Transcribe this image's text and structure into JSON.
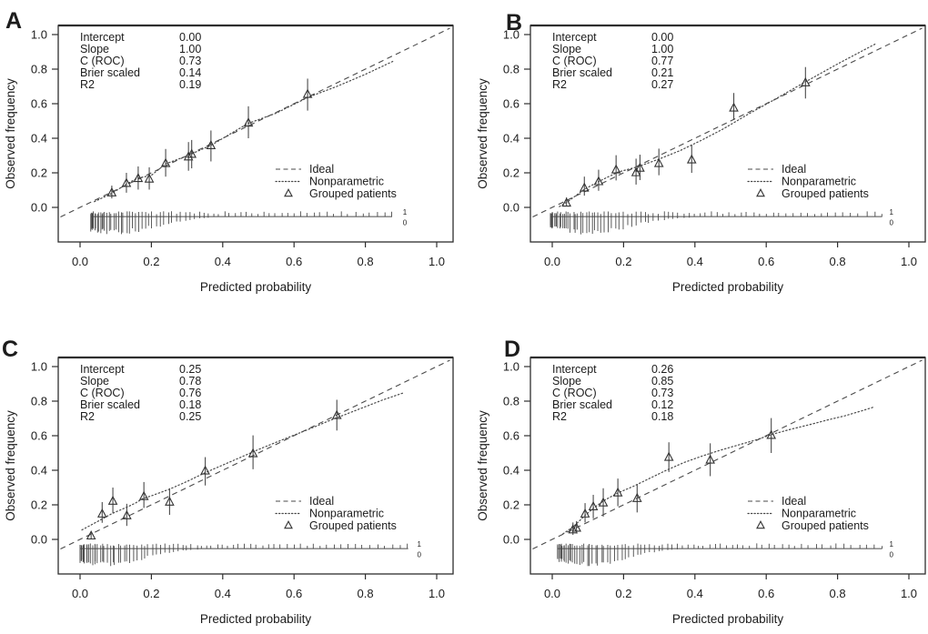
{
  "figure": {
    "background": "#ffffff",
    "line_color": "#4a4a4a",
    "box_color": "#2e2e2e",
    "text_color": "#1c1c1c",
    "x_label": "Predicted probability",
    "y_label": "Observed frequency",
    "x_ticks": [
      "0.0",
      "0.2",
      "0.4",
      "0.6",
      "0.8",
      "1.0"
    ],
    "y_ticks": [
      "1.0",
      "0.8",
      "0.6",
      "0.4",
      "0.2",
      "0.0"
    ],
    "legend": [
      {
        "symbol": "dashed-line",
        "label": "Ideal"
      },
      {
        "symbol": "dotted-line",
        "label": "Nonparametric"
      },
      {
        "symbol": "open-triangle",
        "label": "Grouped patients"
      }
    ],
    "rug_labels": {
      "one": "1",
      "zero": "0"
    }
  },
  "chart_data": [
    {
      "panel": "A",
      "type": "line",
      "title": "",
      "xlabel": "Predicted probability",
      "ylabel": "Observed frequency",
      "xlim": [
        -0.06,
        1.04
      ],
      "ylim": [
        -0.2,
        1.05
      ],
      "stats": [
        {
          "label": "Intercept",
          "value": "0.00"
        },
        {
          "label": "Slope",
          "value": "1.00"
        },
        {
          "label": "C (ROC)",
          "value": "0.73"
        },
        {
          "label": "Brier scaled",
          "value": "0.14"
        },
        {
          "label": "R2",
          "value": "0.19"
        }
      ],
      "ideal": {
        "x1": -0.055,
        "y1": -0.055,
        "x2": 1.037,
        "y2": 1.037
      },
      "nonparametric": [
        [
          0.04,
          0.033
        ],
        [
          0.09,
          0.082
        ],
        [
          0.13,
          0.135
        ],
        [
          0.16,
          0.168
        ],
        [
          0.2,
          0.186
        ],
        [
          0.24,
          0.252
        ],
        [
          0.3,
          0.298
        ],
        [
          0.37,
          0.362
        ],
        [
          0.47,
          0.485
        ],
        [
          0.55,
          0.545
        ],
        [
          0.64,
          0.638
        ],
        [
          0.72,
          0.7
        ],
        [
          0.8,
          0.77
        ],
        [
          0.88,
          0.848
        ]
      ],
      "grouped": [
        {
          "x": 0.089,
          "y": 0.085,
          "lo": 0.052,
          "hi": 0.126
        },
        {
          "x": 0.13,
          "y": 0.14,
          "lo": 0.085,
          "hi": 0.2
        },
        {
          "x": 0.163,
          "y": 0.168,
          "lo": 0.103,
          "hi": 0.237
        },
        {
          "x": 0.194,
          "y": 0.165,
          "lo": 0.103,
          "hi": 0.232
        },
        {
          "x": 0.24,
          "y": 0.255,
          "lo": 0.178,
          "hi": 0.338
        },
        {
          "x": 0.304,
          "y": 0.293,
          "lo": 0.212,
          "hi": 0.378
        },
        {
          "x": 0.313,
          "y": 0.308,
          "lo": 0.226,
          "hi": 0.39
        },
        {
          "x": 0.367,
          "y": 0.358,
          "lo": 0.266,
          "hi": 0.445
        },
        {
          "x": 0.472,
          "y": 0.489,
          "lo": 0.4,
          "hi": 0.585
        },
        {
          "x": 0.638,
          "y": 0.655,
          "lo": 0.56,
          "hi": 0.745
        }
      ],
      "rug": {
        "seed": 7,
        "n": 74,
        "x_min": 0.03,
        "x_max": 0.875,
        "mode": 0.1,
        "sigma": 0.115,
        "label_x": 0.905
      }
    },
    {
      "panel": "B",
      "type": "line",
      "title": "",
      "xlabel": "Predicted probability",
      "ylabel": "Observed frequency",
      "xlim": [
        -0.06,
        1.04
      ],
      "ylim": [
        -0.2,
        1.05
      ],
      "stats": [
        {
          "label": "Intercept",
          "value": "0.00"
        },
        {
          "label": "Slope",
          "value": "1.00"
        },
        {
          "label": "C (ROC)",
          "value": "0.77"
        },
        {
          "label": "Brier scaled",
          "value": "0.21"
        },
        {
          "label": "R2",
          "value": "0.27"
        }
      ],
      "ideal": {
        "x1": -0.055,
        "y1": -0.055,
        "x2": 1.037,
        "y2": 1.037
      },
      "nonparametric": [
        [
          0.02,
          0.005
        ],
        [
          0.045,
          0.035
        ],
        [
          0.09,
          0.105
        ],
        [
          0.135,
          0.155
        ],
        [
          0.185,
          0.205
        ],
        [
          0.24,
          0.235
        ],
        [
          0.3,
          0.28
        ],
        [
          0.36,
          0.33
        ],
        [
          0.42,
          0.39
        ],
        [
          0.48,
          0.455
        ],
        [
          0.55,
          0.54
        ],
        [
          0.62,
          0.62
        ],
        [
          0.7,
          0.715
        ],
        [
          0.8,
          0.83
        ],
        [
          0.905,
          0.945
        ]
      ],
      "grouped": [
        {
          "x": 0.04,
          "y": 0.026,
          "lo": 0.006,
          "hi": 0.058
        },
        {
          "x": 0.09,
          "y": 0.113,
          "lo": 0.068,
          "hi": 0.178
        },
        {
          "x": 0.13,
          "y": 0.15,
          "lo": 0.096,
          "hi": 0.218
        },
        {
          "x": 0.179,
          "y": 0.218,
          "lo": 0.156,
          "hi": 0.302
        },
        {
          "x": 0.235,
          "y": 0.202,
          "lo": 0.132,
          "hi": 0.282
        },
        {
          "x": 0.246,
          "y": 0.228,
          "lo": 0.158,
          "hi": 0.305
        },
        {
          "x": 0.299,
          "y": 0.255,
          "lo": 0.186,
          "hi": 0.34
        },
        {
          "x": 0.391,
          "y": 0.276,
          "lo": 0.2,
          "hi": 0.362
        },
        {
          "x": 0.509,
          "y": 0.576,
          "lo": 0.506,
          "hi": 0.662
        },
        {
          "x": 0.71,
          "y": 0.722,
          "lo": 0.63,
          "hi": 0.812
        }
      ],
      "rug": {
        "seed": 13,
        "n": 78,
        "x_min": -0.005,
        "x_max": 0.925,
        "mode": 0.1,
        "sigma": 0.12,
        "label_x": 0.945
      }
    },
    {
      "panel": "C",
      "type": "line",
      "title": "",
      "xlabel": "Predicted probability",
      "ylabel": "Observed frequency",
      "xlim": [
        -0.06,
        1.04
      ],
      "ylim": [
        -0.2,
        1.05
      ],
      "stats": [
        {
          "label": "Intercept",
          "value": "0.25"
        },
        {
          "label": "Slope",
          "value": "0.78"
        },
        {
          "label": "C (ROC)",
          "value": "0.76"
        },
        {
          "label": "Brier scaled",
          "value": "0.18"
        },
        {
          "label": "R2",
          "value": "0.25"
        }
      ],
      "ideal": {
        "x1": -0.055,
        "y1": -0.055,
        "x2": 1.037,
        "y2": 1.037
      },
      "nonparametric": [
        [
          0.005,
          0.055
        ],
        [
          0.05,
          0.105
        ],
        [
          0.09,
          0.15
        ],
        [
          0.13,
          0.185
        ],
        [
          0.155,
          0.21
        ],
        [
          0.175,
          0.235
        ],
        [
          0.2,
          0.252
        ],
        [
          0.25,
          0.29
        ],
        [
          0.3,
          0.335
        ],
        [
          0.35,
          0.385
        ],
        [
          0.4,
          0.43
        ],
        [
          0.45,
          0.475
        ],
        [
          0.5,
          0.52
        ],
        [
          0.55,
          0.562
        ],
        [
          0.6,
          0.603
        ],
        [
          0.65,
          0.645
        ],
        [
          0.7,
          0.688
        ],
        [
          0.75,
          0.728
        ],
        [
          0.8,
          0.768
        ],
        [
          0.85,
          0.808
        ],
        [
          0.91,
          0.85
        ]
      ],
      "grouped": [
        {
          "x": 0.031,
          "y": 0.021,
          "lo": 0.004,
          "hi": 0.046
        },
        {
          "x": 0.062,
          "y": 0.148,
          "lo": 0.096,
          "hi": 0.216
        },
        {
          "x": 0.092,
          "y": 0.222,
          "lo": 0.152,
          "hi": 0.3
        },
        {
          "x": 0.131,
          "y": 0.138,
          "lo": 0.078,
          "hi": 0.206
        },
        {
          "x": 0.179,
          "y": 0.249,
          "lo": 0.182,
          "hi": 0.332
        },
        {
          "x": 0.251,
          "y": 0.217,
          "lo": 0.142,
          "hi": 0.296
        },
        {
          "x": 0.351,
          "y": 0.397,
          "lo": 0.312,
          "hi": 0.476
        },
        {
          "x": 0.485,
          "y": 0.497,
          "lo": 0.406,
          "hi": 0.602
        },
        {
          "x": 0.72,
          "y": 0.718,
          "lo": 0.63,
          "hi": 0.808
        }
      ],
      "rug": {
        "seed": 21,
        "n": 78,
        "x_min": 0.0,
        "x_max": 0.92,
        "mode": 0.07,
        "sigma": 0.11,
        "label_x": 0.945
      }
    },
    {
      "panel": "D",
      "type": "line",
      "title": "",
      "xlabel": "Predicted probability",
      "ylabel": "Observed frequency",
      "xlim": [
        -0.06,
        1.04
      ],
      "ylim": [
        -0.2,
        1.05
      ],
      "stats": [
        {
          "label": "Intercept",
          "value": "0.26"
        },
        {
          "label": "Slope",
          "value": "0.85"
        },
        {
          "label": "C (ROC)",
          "value": "0.73"
        },
        {
          "label": "Brier scaled",
          "value": "0.12"
        },
        {
          "label": "R2",
          "value": "0.18"
        }
      ],
      "ideal": {
        "x1": -0.055,
        "y1": -0.055,
        "x2": 1.037,
        "y2": 1.037
      },
      "nonparametric": [
        [
          0.03,
          0.032
        ],
        [
          0.06,
          0.075
        ],
        [
          0.09,
          0.135
        ],
        [
          0.115,
          0.18
        ],
        [
          0.145,
          0.225
        ],
        [
          0.185,
          0.27
        ],
        [
          0.225,
          0.305
        ],
        [
          0.27,
          0.35
        ],
        [
          0.32,
          0.4
        ],
        [
          0.37,
          0.445
        ],
        [
          0.42,
          0.482
        ],
        [
          0.47,
          0.515
        ],
        [
          0.52,
          0.545
        ],
        [
          0.57,
          0.575
        ],
        [
          0.62,
          0.61
        ],
        [
          0.67,
          0.638
        ],
        [
          0.72,
          0.663
        ],
        [
          0.77,
          0.69
        ],
        [
          0.82,
          0.715
        ],
        [
          0.87,
          0.745
        ],
        [
          0.9,
          0.765
        ]
      ],
      "grouped": [
        {
          "x": 0.058,
          "y": 0.056,
          "lo": 0.026,
          "hi": 0.098
        },
        {
          "x": 0.068,
          "y": 0.066,
          "lo": 0.034,
          "hi": 0.106
        },
        {
          "x": 0.092,
          "y": 0.148,
          "lo": 0.098,
          "hi": 0.21
        },
        {
          "x": 0.115,
          "y": 0.19,
          "lo": 0.122,
          "hi": 0.258
        },
        {
          "x": 0.143,
          "y": 0.212,
          "lo": 0.132,
          "hi": 0.296
        },
        {
          "x": 0.184,
          "y": 0.27,
          "lo": 0.192,
          "hi": 0.352
        },
        {
          "x": 0.238,
          "y": 0.238,
          "lo": 0.156,
          "hi": 0.318
        },
        {
          "x": 0.327,
          "y": 0.476,
          "lo": 0.39,
          "hi": 0.562
        },
        {
          "x": 0.443,
          "y": 0.46,
          "lo": 0.366,
          "hi": 0.556
        },
        {
          "x": 0.614,
          "y": 0.603,
          "lo": 0.5,
          "hi": 0.702
        }
      ],
      "rug": {
        "seed": 29,
        "n": 78,
        "x_min": 0.015,
        "x_max": 0.925,
        "mode": 0.1,
        "sigma": 0.105,
        "label_x": 0.945
      }
    }
  ]
}
